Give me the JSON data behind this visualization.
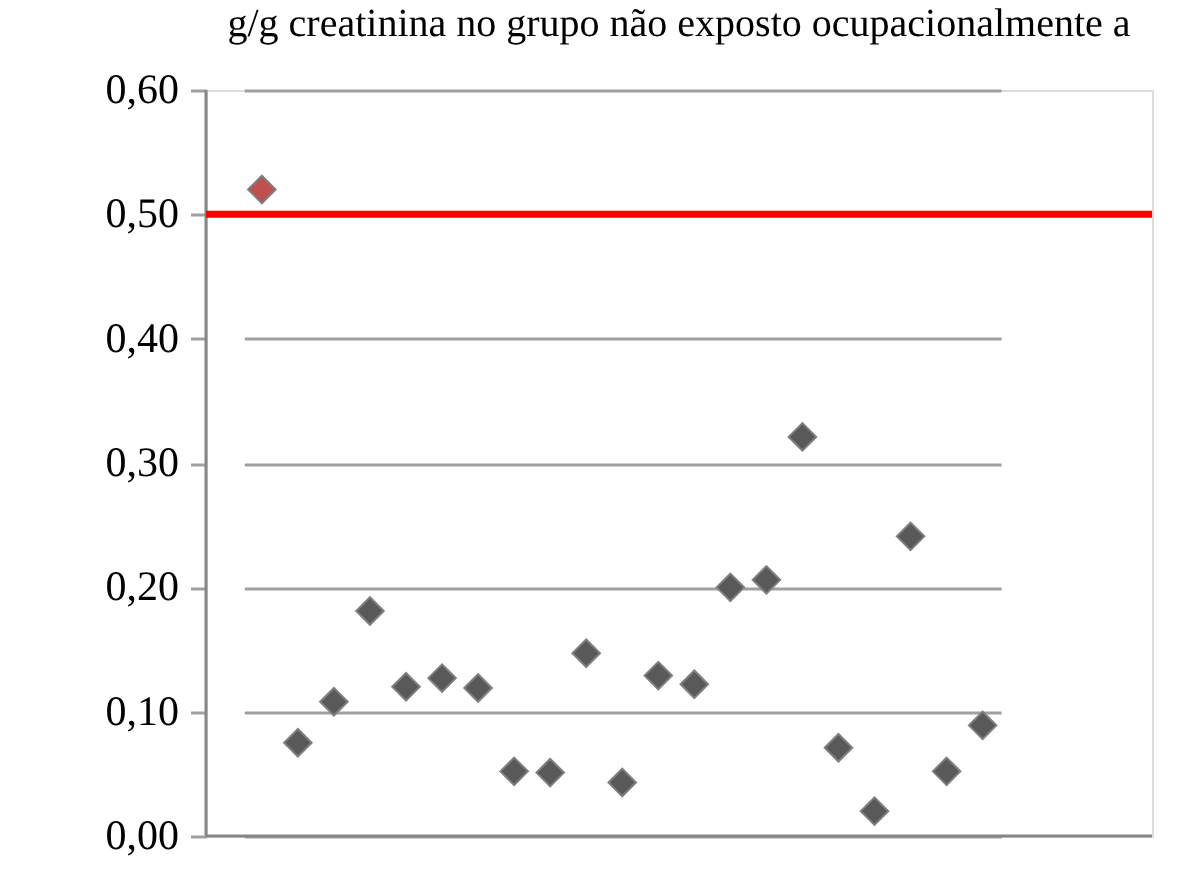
{
  "chart_data": {
    "type": "scatter",
    "title": "g/g creatinina no grupo não exposto ocupacionalmente a",
    "categories": [
      null,
      null,
      null,
      null,
      null,
      null,
      null,
      null,
      null,
      null,
      null,
      null,
      null,
      null,
      null,
      null,
      null,
      null,
      null,
      null,
      null
    ],
    "values": [
      0.52,
      0.075,
      0.108,
      0.181,
      0.12,
      0.127,
      0.119,
      0.052,
      0.051,
      0.147,
      0.043,
      0.129,
      0.122,
      0.2,
      0.206,
      0.321,
      0.071,
      0.02,
      0.241,
      0.052,
      0.089
    ],
    "colors": [
      "#c0504d",
      "#595959",
      "#595959",
      "#595959",
      "#595959",
      "#595959",
      "#595959",
      "#595959",
      "#595959",
      "#595959",
      "#595959",
      "#595959",
      "#595959",
      "#595959",
      "#595959",
      "#595959",
      "#595959",
      "#595959",
      "#595959",
      "#595959",
      "#595959"
    ],
    "marker": "diamond",
    "ylim": [
      0,
      0.6
    ],
    "yticks": [
      {
        "value": 0,
        "label": "0,00"
      },
      {
        "value": 0.1,
        "label": "0,10"
      },
      {
        "value": 0.2,
        "label": "0,20"
      },
      {
        "value": 0.3,
        "label": "0,30"
      },
      {
        "value": 0.4,
        "label": "0,40"
      },
      {
        "value": 0.5,
        "label": "0,50"
      },
      {
        "value": 0.6,
        "label": "0,60"
      }
    ],
    "ref_lines": [
      {
        "axis": "y",
        "value": 0.5,
        "color": "#ff0000"
      }
    ],
    "grid": "y",
    "tick_labels": "y"
  }
}
